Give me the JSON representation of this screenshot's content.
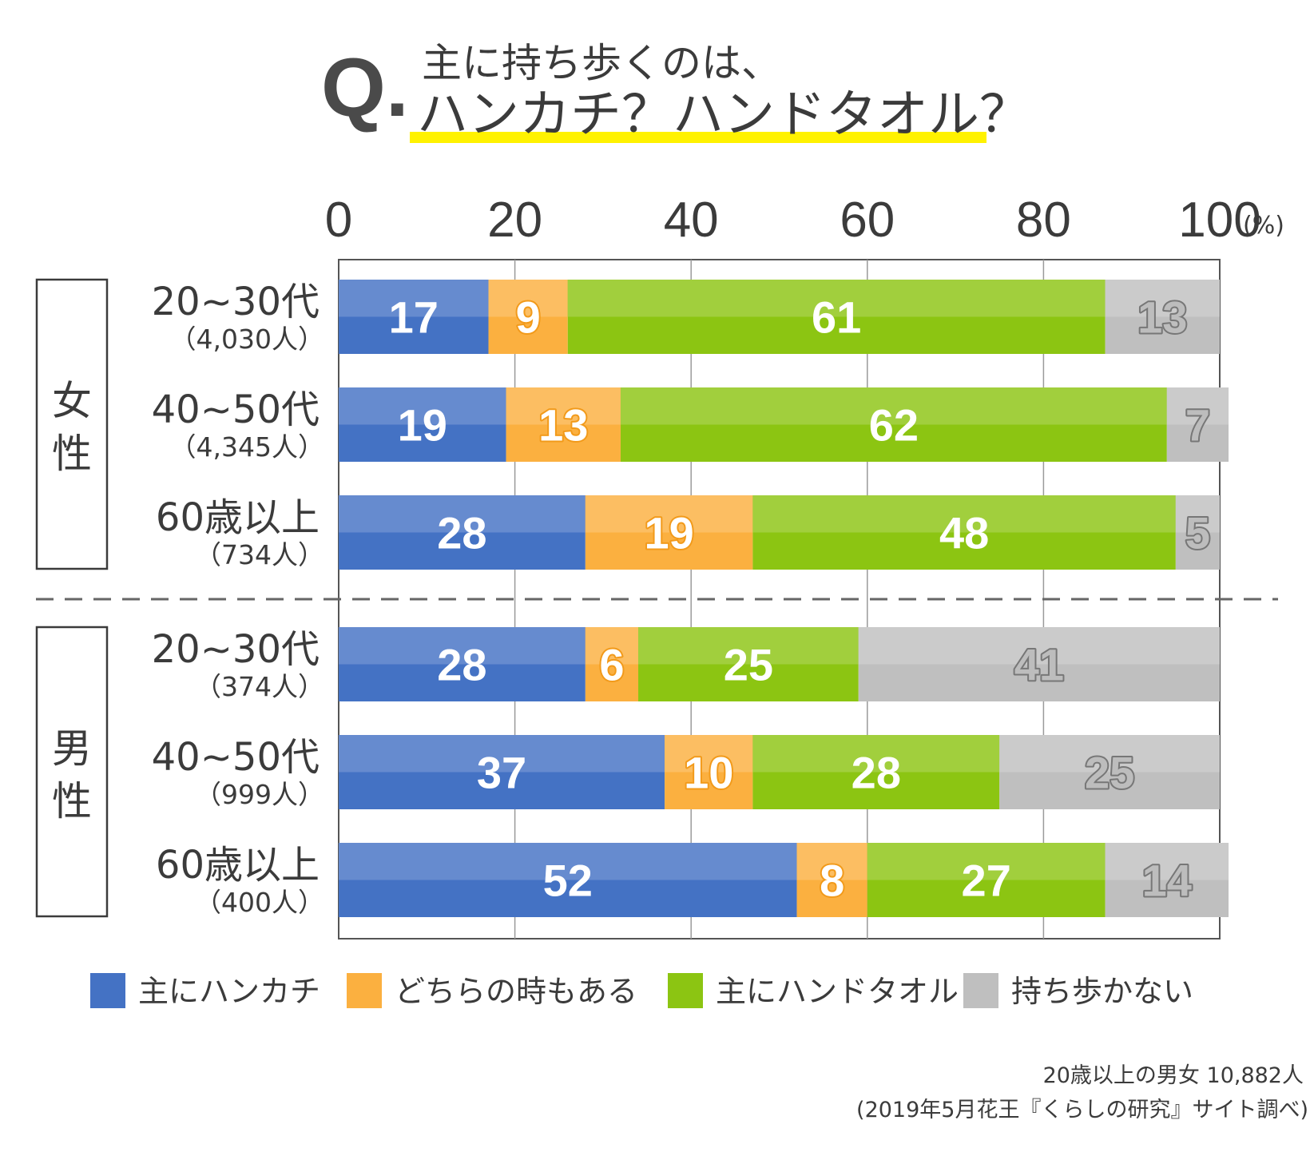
{
  "title": {
    "q": "Q.",
    "line1": "主に持ち歩くのは、",
    "line2": "ハンカチ？ハンドタオル？",
    "underline_color": "#fff200"
  },
  "axis": {
    "ticks": [
      0,
      20,
      40,
      60,
      80,
      100
    ],
    "tick_labels": [
      "0",
      "20",
      "40",
      "60",
      "80",
      "100"
    ],
    "unit": "(%)"
  },
  "groups": [
    {
      "label_chars": [
        "女",
        "性"
      ]
    },
    {
      "label_chars": [
        "男",
        "性"
      ]
    }
  ],
  "rows": [
    {
      "label": "20~30代",
      "n": "（4,030人）"
    },
    {
      "label": "40~50代",
      "n": "（4,345人）"
    },
    {
      "label": "60歳以上",
      "n": "（734人）"
    },
    {
      "label": "20~30代",
      "n": "（374人）"
    },
    {
      "label": "40~50代",
      "n": "（999人）"
    },
    {
      "label": "60歳以上",
      "n": "（400人）"
    }
  ],
  "legend": [
    {
      "label": "主にハンカチ",
      "color": "#4472c4"
    },
    {
      "label": "どちらの時もある",
      "color": "#fbb040"
    },
    {
      "label": "主にハンドタオル",
      "color": "#8cc512"
    },
    {
      "label": "持ち歩かない",
      "color": "#bfbfbf"
    }
  ],
  "footnote": {
    "line1": "20歳以上の男女 10,882人",
    "line2": "(2019年5月花王『くらしの研究』サイト調べ)"
  },
  "chart_data": {
    "type": "bar",
    "orientation": "horizontal",
    "stacked": true,
    "categories": [
      "女性 20~30代（4,030人）",
      "女性 40~50代（4,345人）",
      "女性 60歳以上（734人）",
      "男性 20~30代（374人）",
      "男性 40~50代（999人）",
      "男性 60歳以上（400人）"
    ],
    "series": [
      {
        "name": "主にハンカチ",
        "color": "#4472c4",
        "values": [
          17,
          19,
          28,
          28,
          37,
          52
        ]
      },
      {
        "name": "どちらの時もある",
        "color": "#fbb040",
        "values": [
          9,
          13,
          19,
          6,
          10,
          8
        ]
      },
      {
        "name": "主にハンドタオル",
        "color": "#8cc512",
        "values": [
          61,
          62,
          48,
          25,
          28,
          27
        ]
      },
      {
        "name": "持ち歩かない",
        "color": "#bfbfbf",
        "values": [
          13,
          7,
          5,
          41,
          25,
          14
        ]
      }
    ],
    "xlim": [
      0,
      100
    ],
    "grid": true,
    "legend_position": "bottom"
  }
}
